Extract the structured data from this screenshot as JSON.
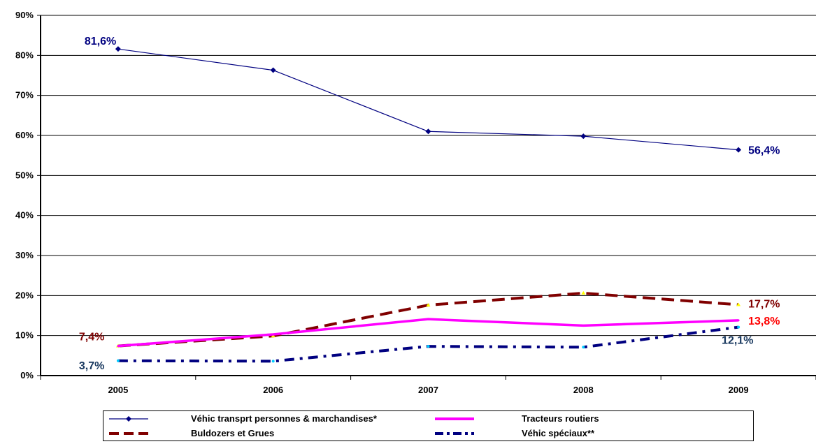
{
  "chart_data": {
    "type": "line",
    "categories": [
      "2005",
      "2006",
      "2007",
      "2008",
      "2009"
    ],
    "y_ticks": [
      "0%",
      "10%",
      "20%",
      "30%",
      "40%",
      "50%",
      "60%",
      "70%",
      "80%",
      "90%"
    ],
    "ylim": [
      0,
      90
    ],
    "grid": true,
    "legend_position": "bottom",
    "series": [
      {
        "name": "Véhic transprt personnes & marchandises*",
        "values": [
          81.6,
          76.3,
          61.0,
          59.8,
          56.4
        ],
        "color": "#000080",
        "style": "solid-thin-diamond",
        "labels": {
          "first": "81,6%",
          "last": "56,4%"
        },
        "label_color": "#000080"
      },
      {
        "name": "Tracteurs routiers",
        "values": [
          7.4,
          10.3,
          14.1,
          12.5,
          13.8
        ],
        "color": "#ff00ff",
        "style": "solid-thick",
        "labels": {
          "last": "13,8%"
        },
        "label_color": "#ff0000"
      },
      {
        "name": "Buldozers et Grues",
        "values": [
          7.4,
          9.9,
          17.6,
          20.6,
          17.7
        ],
        "color": "#800000",
        "style": "long-dash",
        "labels": {
          "first": "7,4%",
          "last": "17,7%"
        },
        "label_color": "#800000"
      },
      {
        "name": "Véhic spéciaux**",
        "values": [
          3.7,
          3.6,
          7.3,
          7.1,
          12.1
        ],
        "color": "#000080",
        "style": "dash-dot",
        "labels": {
          "first": "3,7%",
          "last": "12,1%"
        },
        "label_color": "#17375e"
      }
    ]
  }
}
